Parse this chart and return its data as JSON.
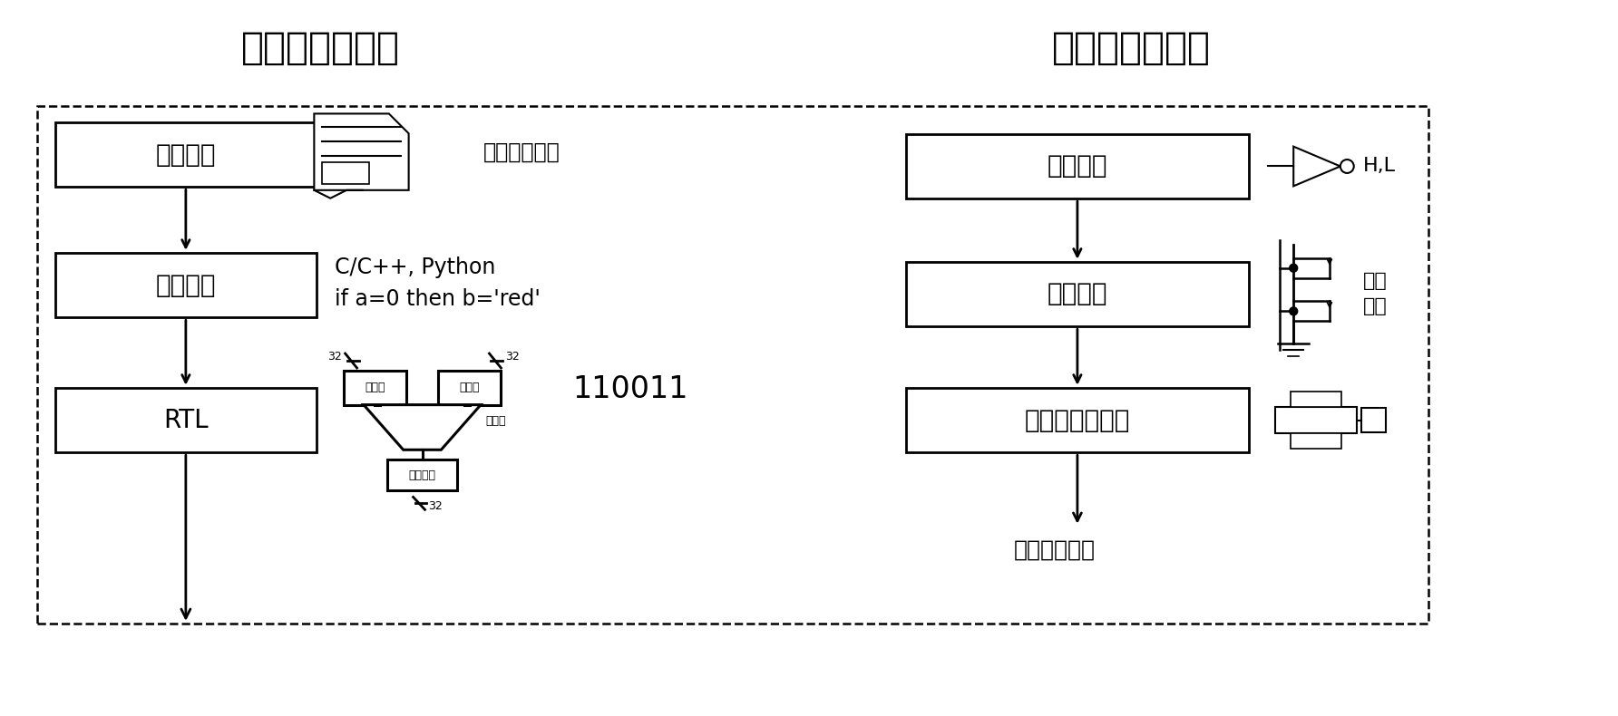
{
  "title_left": "セットメーカー",
  "title_right": "半導体設計会社",
  "boxes_left": [
    "仕様設計",
    "機能記述",
    "RTL"
  ],
  "boxes_right": [
    "論理設計",
    "回路設計",
    "レイアウト設計"
  ],
  "text_spec": "自然言語／図",
  "text_code": "C/C++, Python\nif a=0 then b='red'",
  "text_binary": "110011",
  "text_photo": "フォトマスク",
  "text_HL": "H,L",
  "text_voltage": "電圧\n電流",
  "latch_label": "ラッチ",
  "adder_label": "加算器",
  "register_label": "レジスタ",
  "bg_color": "#ffffff",
  "box_color": "#000000",
  "font_size_title": 30,
  "font_size_box": 20,
  "font_size_label": 10,
  "font_size_code": 17,
  "font_size_binary": 24,
  "font_size_photo": 18
}
